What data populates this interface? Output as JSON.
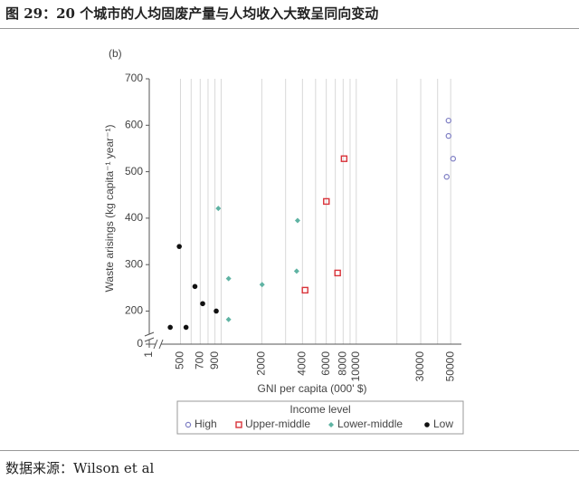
{
  "header": {
    "title": "图 29：20 个城市的人均固废产量与人均收入大致呈同向变动"
  },
  "footer": {
    "source": "数据来源：Wilson et al"
  },
  "chart_data": {
    "type": "scatter",
    "panel_label": "(b)",
    "xlabel": "GNI per capita (000' $)",
    "ylabel": "Waste arisings (kg capita⁻¹ year⁻¹)",
    "xscale": "log",
    "xlim": [
      1,
      60000
    ],
    "x_break": [
      1,
      400
    ],
    "xticks": [
      1,
      500,
      700,
      900,
      2000,
      4000,
      6000,
      8000,
      10000,
      30000,
      50000
    ],
    "xgrid": [
      600,
      800,
      1000,
      3000,
      5000,
      7000,
      9000,
      20000,
      40000
    ],
    "ylim": [
      0,
      700
    ],
    "y_break": [
      0,
      160
    ],
    "yticks": [
      0,
      200,
      300,
      400,
      500,
      600,
      700
    ],
    "grid": true,
    "legend": {
      "title": "Income level",
      "position": "bottom"
    },
    "series": [
      {
        "name": "High",
        "color": "#7f7fc4",
        "marker": "circle-open",
        "x": [
          46700,
          48200,
          48200,
          52100
        ],
        "values": [
          489,
          610,
          577,
          528
        ]
      },
      {
        "name": "Upper-middle",
        "color": "#d9333a",
        "marker": "square-open",
        "x": [
          4180,
          6010,
          7280,
          8130
        ],
        "values": [
          245,
          436,
          282,
          528
        ]
      },
      {
        "name": "Lower-middle",
        "color": "#5fb3a3",
        "marker": "diamond",
        "x": [
          953,
          1135,
          1135,
          2010,
          3680,
          3620
        ],
        "values": [
          421,
          270,
          182,
          257,
          395,
          286
        ]
      },
      {
        "name": "Low",
        "color": "#111111",
        "marker": "circle",
        "x": [
          420,
          490,
          550,
          640,
          730,
          920
        ],
        "values": [
          165,
          339,
          165,
          253,
          216,
          200
        ]
      }
    ]
  }
}
